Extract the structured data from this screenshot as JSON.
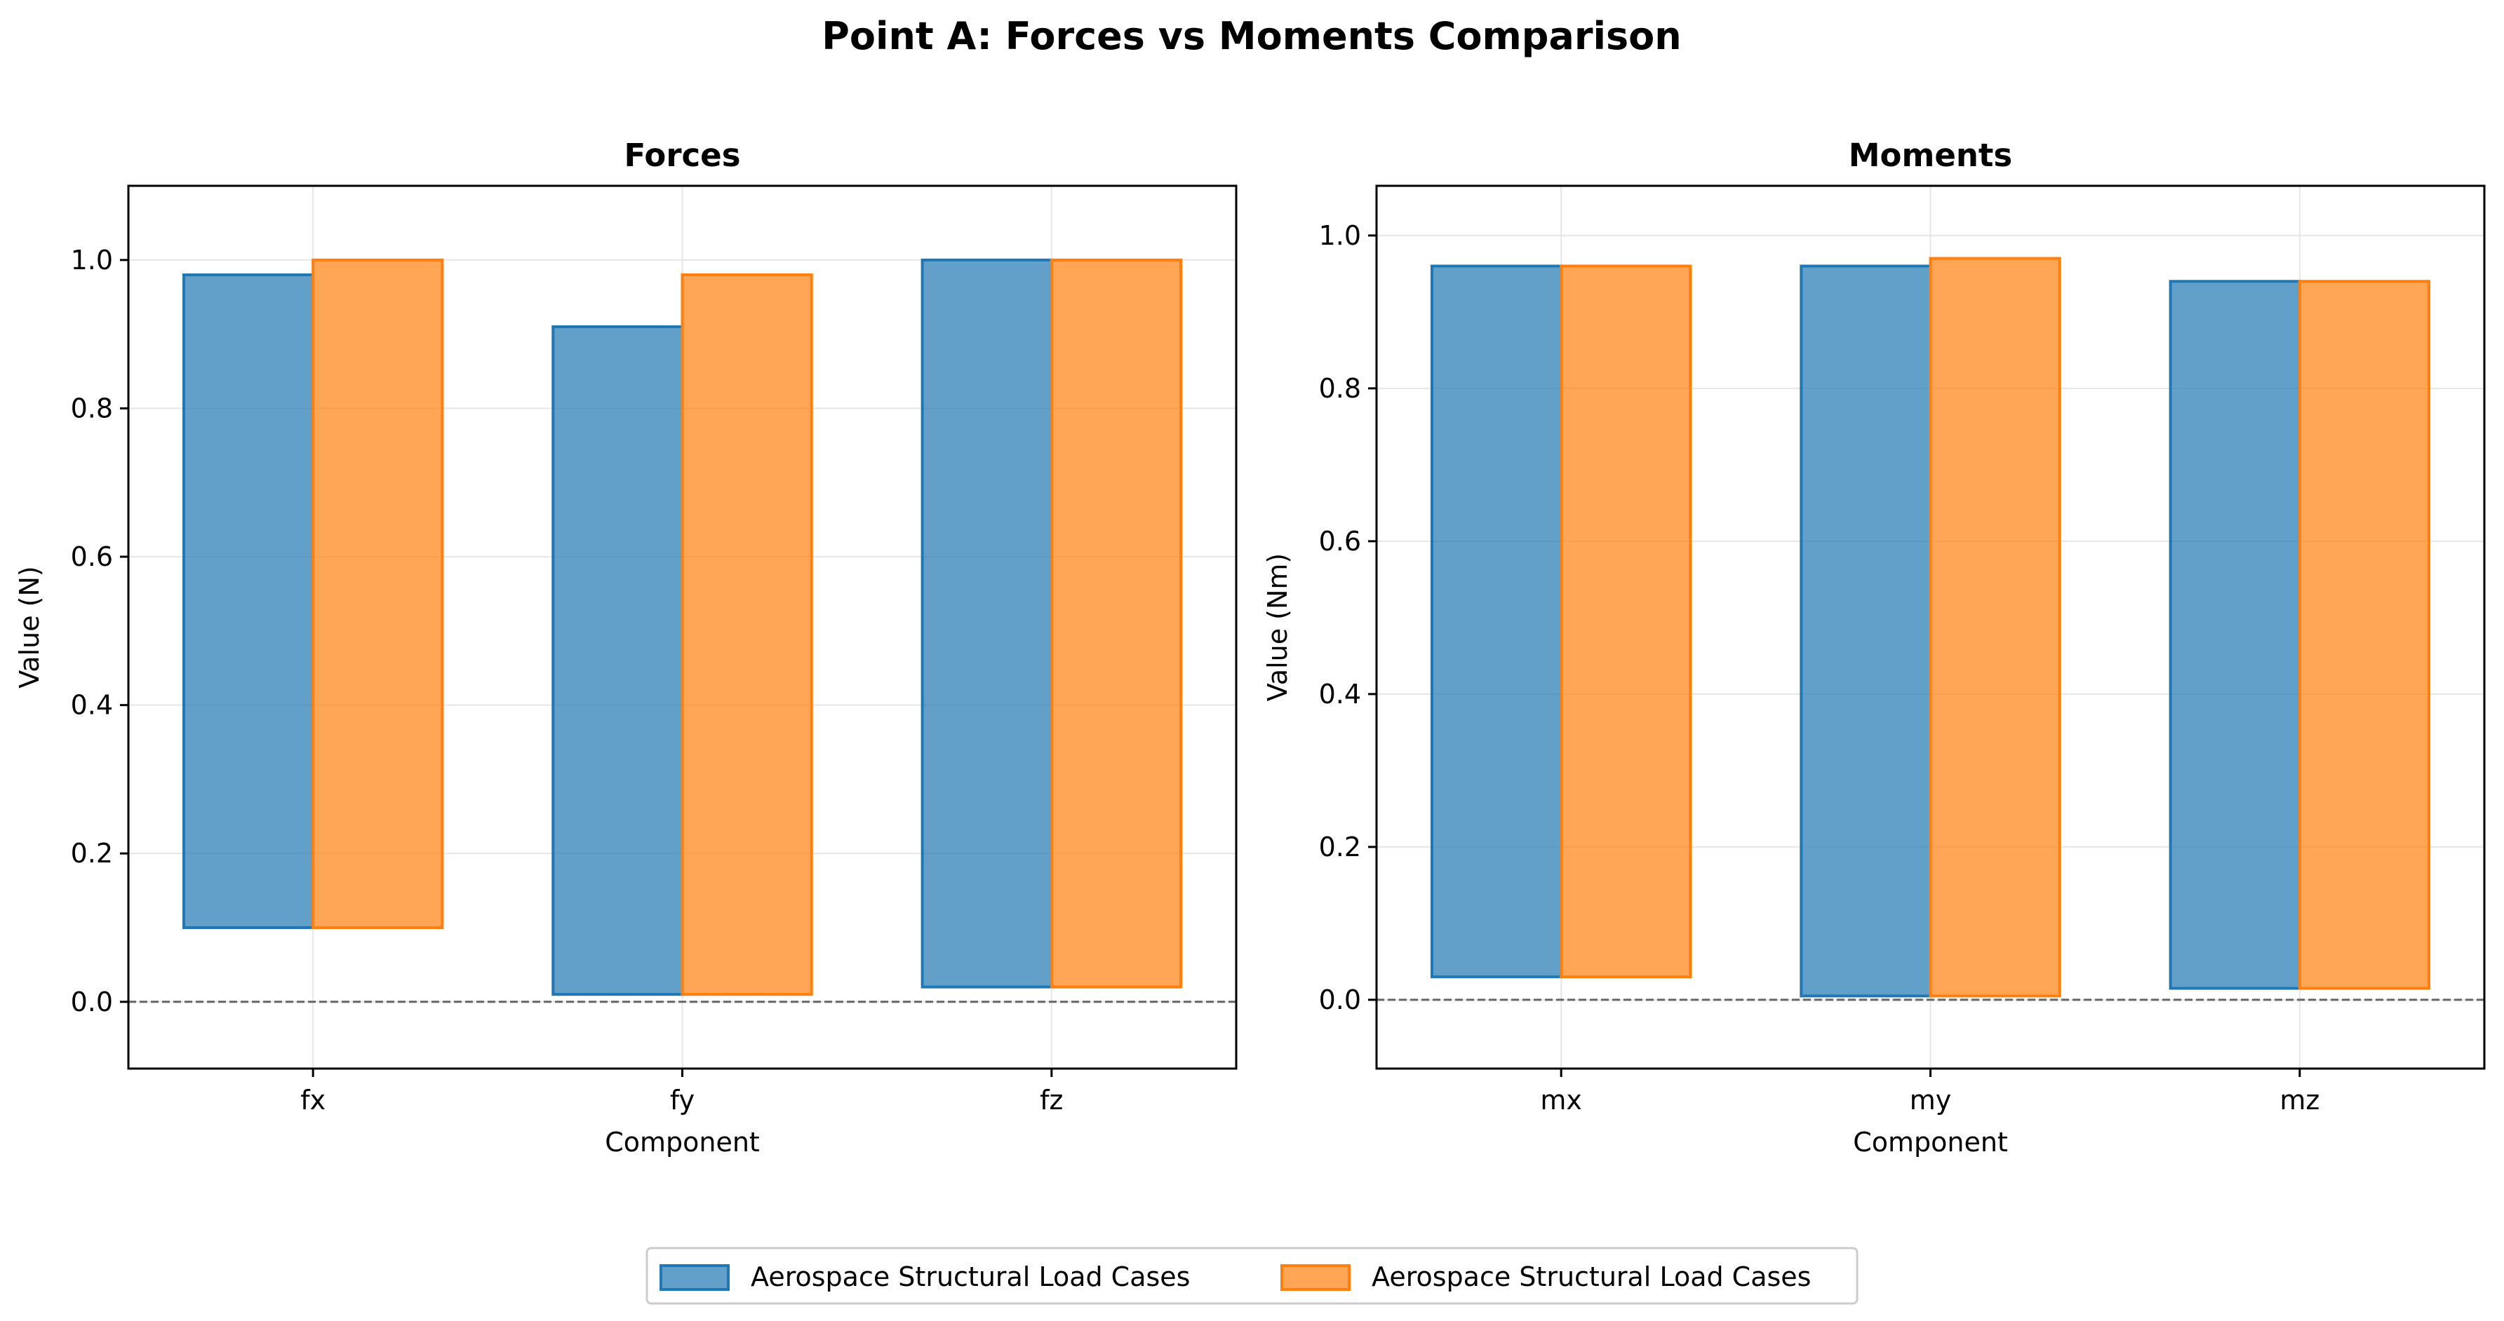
{
  "suptitle": "Point A: Forces vs Moments Comparison",
  "colors": {
    "series1": "#1f77b4",
    "series2": "#ff7f0e"
  },
  "legend": {
    "placement": "bottom-center",
    "entries": [
      "Aerospace Structural Load Cases",
      "Aerospace Structural Load Cases"
    ]
  },
  "chart_data": [
    {
      "type": "bar",
      "subtype": "floating",
      "title": "Forces",
      "xlabel": "Component",
      "ylabel": "Value (N)",
      "categories": [
        "fx",
        "fy",
        "fz"
      ],
      "ylim": [
        -0.09,
        1.1
      ],
      "yticks": [
        0.0,
        0.2,
        0.4,
        0.6,
        0.8,
        1.0
      ],
      "ytick_labels": [
        "0.0",
        "0.2",
        "0.4",
        "0.6",
        "0.8",
        "1.0"
      ],
      "grid": true,
      "reference_line": 0.0,
      "series": [
        {
          "name": "Aerospace Structural Load Cases",
          "bottom": [
            0.1,
            0.01,
            0.02
          ],
          "top": [
            0.98,
            0.91,
            1.0
          ]
        },
        {
          "name": "Aerospace Structural Load Cases",
          "bottom": [
            0.1,
            0.01,
            0.02
          ],
          "top": [
            1.0,
            0.98,
            1.0
          ]
        }
      ]
    },
    {
      "type": "bar",
      "subtype": "floating",
      "title": "Moments",
      "xlabel": "Component",
      "ylabel": "Value (Nm)",
      "categories": [
        "mx",
        "my",
        "mz"
      ],
      "ylim": [
        -0.09,
        1.065
      ],
      "yticks": [
        0.0,
        0.2,
        0.4,
        0.6,
        0.8,
        1.0
      ],
      "ytick_labels": [
        "0.0",
        "0.2",
        "0.4",
        "0.6",
        "0.8",
        "1.0"
      ],
      "grid": true,
      "reference_line": 0.0,
      "series": [
        {
          "name": "Aerospace Structural Load Cases",
          "bottom": [
            0.03,
            0.005,
            0.015
          ],
          "top": [
            0.96,
            0.96,
            0.94
          ]
        },
        {
          "name": "Aerospace Structural Load Cases",
          "bottom": [
            0.03,
            0.005,
            0.015
          ],
          "top": [
            0.96,
            0.97,
            0.94
          ]
        }
      ]
    }
  ]
}
